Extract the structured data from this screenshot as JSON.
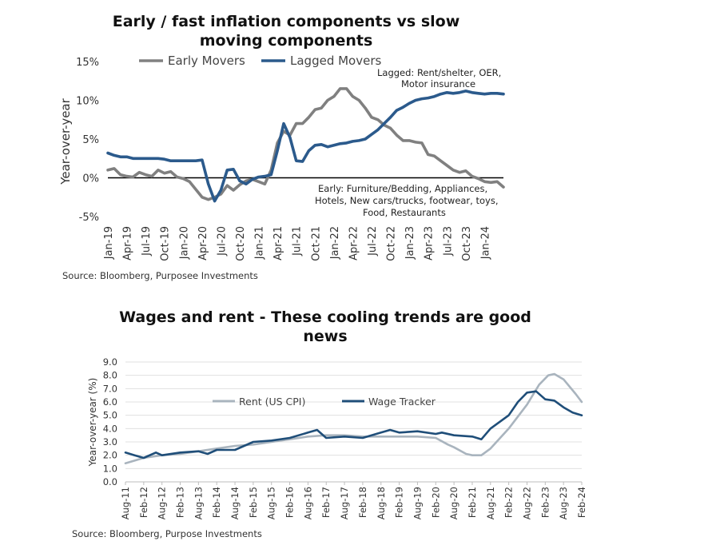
{
  "chart_data": [
    {
      "type": "line",
      "title": "Early / fast inflation components vs slow moving components",
      "title_lines": [
        "Early / fast inflation components vs slow",
        "moving components"
      ],
      "ylabel": "Year-over-year",
      "ylim": [
        -5,
        15
      ],
      "yticks": [
        -5,
        0,
        5,
        10,
        15
      ],
      "ytick_labels": [
        "-5%",
        "0%",
        "5%",
        "10%",
        "15%"
      ],
      "x_start": "2019-01",
      "x_ticks": [
        "Jan-19",
        "Apr-19",
        "Jul-19",
        "Oct-19",
        "Jan-20",
        "Apr-20",
        "Jul-20",
        "Oct-20",
        "Jan-21",
        "Apr-21",
        "Jul-21",
        "Oct-21",
        "Jan-22",
        "Apr-22",
        "Jul-22",
        "Oct-22",
        "Jan-23",
        "Apr-23",
        "Jul-23",
        "Oct-23",
        "Jan-24"
      ],
      "legend_placement": "top",
      "grid": false,
      "colors": {
        "early": "#808080",
        "lagged": "#2b5a8c",
        "zero": "#000000"
      },
      "series": [
        {
          "name": "Early Movers",
          "values": [
            1.0,
            1.2,
            0.4,
            0.2,
            0.1,
            0.7,
            0.4,
            0.2,
            1.0,
            0.6,
            0.8,
            0.1,
            -0.1,
            -0.5,
            -1.5,
            -2.5,
            -2.8,
            -2.5,
            -2.1,
            -1.0,
            -1.6,
            -0.9,
            -0.4,
            -0.2,
            -0.5,
            -0.8,
            1.0,
            4.5,
            6.0,
            5.5,
            7.0,
            7.0,
            7.8,
            8.8,
            9.0,
            10.0,
            10.5,
            11.5,
            11.5,
            10.5,
            10.0,
            9.0,
            7.8,
            7.5,
            6.8,
            6.4,
            5.5,
            4.8,
            4.8,
            4.6,
            4.5,
            3.0,
            2.8,
            2.2,
            1.6,
            1.0,
            0.7,
            0.9,
            0.2,
            -0.1,
            -0.5,
            -0.6,
            -0.5,
            -1.2
          ]
        },
        {
          "name": "Lagged Movers",
          "values": [
            3.2,
            2.9,
            2.7,
            2.7,
            2.5,
            2.5,
            2.5,
            2.5,
            2.5,
            2.4,
            2.2,
            2.2,
            2.2,
            2.2,
            2.2,
            2.3,
            -0.8,
            -3.0,
            -1.6,
            1.0,
            1.1,
            -0.4,
            -0.8,
            -0.2,
            0.1,
            0.2,
            0.4,
            3.5,
            7.0,
            5.2,
            2.2,
            2.1,
            3.5,
            4.2,
            4.3,
            4.0,
            4.2,
            4.4,
            4.5,
            4.7,
            4.8,
            5.0,
            5.6,
            6.2,
            7.0,
            7.8,
            8.7,
            9.1,
            9.6,
            10.0,
            10.2,
            10.3,
            10.5,
            10.8,
            11.0,
            10.9,
            11.0,
            11.2,
            11.0,
            10.9,
            10.8,
            10.9,
            10.9,
            10.8
          ]
        }
      ],
      "annotations": {
        "lagged": [
          "Lagged: Rent/shelter, OER,",
          "Motor insurance"
        ],
        "early": [
          "Early: Furniture/Bedding, Appliances,",
          "Hotels, New cars/trucks, footwear, toys,",
          "Food, Restaurants"
        ]
      },
      "source": "Source: Bloomberg, Purposee Investments"
    },
    {
      "type": "line",
      "title": "Wages and rent - These cooling trends are good news",
      "title_lines": [
        "Wages and rent - These cooling trends are good",
        "news"
      ],
      "ylabel": "Year-over-year (%)",
      "ylim": [
        0,
        9
      ],
      "yticks": [
        0,
        1,
        2,
        3,
        4,
        5,
        6,
        7,
        8,
        9
      ],
      "ytick_labels": [
        "0.0",
        "1.0",
        "2.0",
        "3.0",
        "4.0",
        "5.0",
        "6.0",
        "7.0",
        "8.0",
        "9.0"
      ],
      "x_start": "2011-08",
      "x_end": "2024-02",
      "x_ticks": [
        "Aug-11",
        "Feb-12",
        "Aug-12",
        "Feb-13",
        "Aug-13",
        "Feb-14",
        "Aug-14",
        "Feb-15",
        "Aug-15",
        "Feb-16",
        "Aug-16",
        "Feb-17",
        "Aug-17",
        "Feb-18",
        "Aug-18",
        "Feb-19",
        "Aug-19",
        "Feb-20",
        "Aug-20",
        "Feb-21",
        "Aug-21",
        "Feb-22",
        "Aug-22",
        "Feb-23",
        "Aug-23",
        "Feb-24"
      ],
      "legend_placement": "upper-left",
      "grid": true,
      "colors": {
        "rent": "#a9b4be",
        "wage": "#1f4e79",
        "grid": "#e0e0e0"
      },
      "series": [
        {
          "name": "Rent (US CPI)",
          "points": [
            [
              "2011-08",
              1.4
            ],
            [
              "2012-02",
              1.8
            ],
            [
              "2012-08",
              2.0
            ],
            [
              "2013-02",
              2.1
            ],
            [
              "2013-08",
              2.3
            ],
            [
              "2014-02",
              2.5
            ],
            [
              "2014-08",
              2.7
            ],
            [
              "2015-02",
              2.8
            ],
            [
              "2015-08",
              3.0
            ],
            [
              "2016-02",
              3.2
            ],
            [
              "2016-08",
              3.4
            ],
            [
              "2017-02",
              3.5
            ],
            [
              "2017-08",
              3.5
            ],
            [
              "2018-02",
              3.4
            ],
            [
              "2018-08",
              3.4
            ],
            [
              "2019-02",
              3.4
            ],
            [
              "2019-08",
              3.4
            ],
            [
              "2020-02",
              3.3
            ],
            [
              "2020-06",
              2.8
            ],
            [
              "2020-08",
              2.6
            ],
            [
              "2020-12",
              2.1
            ],
            [
              "2021-02",
              2.0
            ],
            [
              "2021-05",
              2.0
            ],
            [
              "2021-08",
              2.5
            ],
            [
              "2022-02",
              4.0
            ],
            [
              "2022-08",
              5.8
            ],
            [
              "2022-12",
              7.3
            ],
            [
              "2023-03",
              8.0
            ],
            [
              "2023-05",
              8.1
            ],
            [
              "2023-08",
              7.7
            ],
            [
              "2023-12",
              6.6
            ],
            [
              "2024-02",
              6.0
            ]
          ]
        },
        {
          "name": "Wage Tracker",
          "points": [
            [
              "2011-08",
              2.2
            ],
            [
              "2011-11",
              2.0
            ],
            [
              "2012-02",
              1.8
            ],
            [
              "2012-06",
              2.2
            ],
            [
              "2012-08",
              2.0
            ],
            [
              "2013-02",
              2.2
            ],
            [
              "2013-08",
              2.3
            ],
            [
              "2013-11",
              2.1
            ],
            [
              "2014-02",
              2.4
            ],
            [
              "2014-08",
              2.4
            ],
            [
              "2015-02",
              3.0
            ],
            [
              "2015-08",
              3.1
            ],
            [
              "2016-02",
              3.3
            ],
            [
              "2016-08",
              3.7
            ],
            [
              "2016-11",
              3.9
            ],
            [
              "2017-02",
              3.3
            ],
            [
              "2017-08",
              3.4
            ],
            [
              "2018-02",
              3.3
            ],
            [
              "2018-08",
              3.7
            ],
            [
              "2018-11",
              3.9
            ],
            [
              "2019-02",
              3.7
            ],
            [
              "2019-08",
              3.8
            ],
            [
              "2020-02",
              3.6
            ],
            [
              "2020-04",
              3.7
            ],
            [
              "2020-08",
              3.5
            ],
            [
              "2021-02",
              3.4
            ],
            [
              "2021-05",
              3.2
            ],
            [
              "2021-08",
              4.0
            ],
            [
              "2022-02",
              5.0
            ],
            [
              "2022-05",
              6.0
            ],
            [
              "2022-08",
              6.7
            ],
            [
              "2022-11",
              6.8
            ],
            [
              "2023-02",
              6.2
            ],
            [
              "2023-05",
              6.1
            ],
            [
              "2023-08",
              5.6
            ],
            [
              "2023-11",
              5.2
            ],
            [
              "2024-02",
              5.0
            ]
          ]
        }
      ],
      "source": "Source: Bloomberg, Purpose Investments"
    }
  ]
}
